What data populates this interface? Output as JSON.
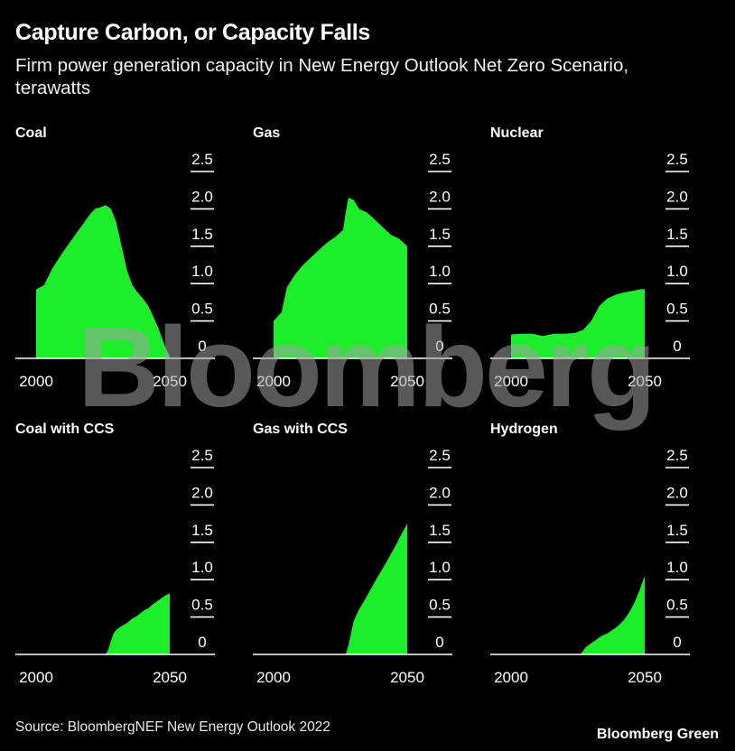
{
  "title": "Capture Carbon, or Capacity Falls",
  "subtitle": "Firm power generation capacity in New Energy Outlook Net Zero Scenario, terawatts",
  "source": "Source: BloombergNEF New Energy Outlook 2022",
  "brand": "Bloomberg Green",
  "watermark": "Bloomberg",
  "colors": {
    "fill": "#1dee2b",
    "background": "#000000",
    "axis": "#ffffff"
  },
  "chart_data": [
    {
      "type": "area",
      "title": "Coal",
      "xlim": [
        2000,
        2050
      ],
      "ylim": [
        0,
        2.5
      ],
      "x_ticks": [
        "2000",
        "2050"
      ],
      "y_ticks": [
        "2.5",
        "2.0",
        "1.5",
        "1.0",
        "0.5",
        "0"
      ],
      "x": [
        2000,
        2003,
        2006,
        2010,
        2014,
        2018,
        2020,
        2022,
        2024,
        2026,
        2028,
        2030,
        2032,
        2034,
        2036,
        2038,
        2040,
        2042,
        2044,
        2046,
        2048,
        2050
      ],
      "values": [
        0.92,
        0.98,
        1.2,
        1.42,
        1.62,
        1.82,
        1.92,
        2.0,
        2.02,
        2.05,
        2.0,
        1.82,
        1.5,
        1.18,
        0.98,
        0.88,
        0.8,
        0.7,
        0.55,
        0.38,
        0.18,
        0.02
      ]
    },
    {
      "type": "area",
      "title": "Gas",
      "xlim": [
        2000,
        2050
      ],
      "ylim": [
        0,
        2.5
      ],
      "x_ticks": [
        "2000",
        "2050"
      ],
      "y_ticks": [
        "2.5",
        "2.0",
        "1.5",
        "1.0",
        "0.5",
        "0"
      ],
      "x": [
        2000,
        2003,
        2005,
        2008,
        2011,
        2014,
        2017,
        2020,
        2023,
        2026,
        2027,
        2028,
        2030,
        2032,
        2035,
        2038,
        2041,
        2044,
        2047,
        2050
      ],
      "values": [
        0.5,
        0.62,
        0.95,
        1.12,
        1.25,
        1.35,
        1.45,
        1.55,
        1.62,
        1.72,
        1.95,
        2.15,
        2.12,
        2.0,
        1.95,
        1.85,
        1.75,
        1.65,
        1.6,
        1.5
      ]
    },
    {
      "type": "area",
      "title": "Nuclear",
      "xlim": [
        2000,
        2050
      ],
      "ylim": [
        0,
        2.5
      ],
      "x_ticks": [
        "2000",
        "2050"
      ],
      "y_ticks": [
        "2.5",
        "2.0",
        "1.5",
        "1.0",
        "0.5",
        "0"
      ],
      "x": [
        2000,
        2004,
        2008,
        2012,
        2016,
        2020,
        2024,
        2027,
        2030,
        2033,
        2036,
        2039,
        2042,
        2045,
        2048,
        2050
      ],
      "values": [
        0.32,
        0.33,
        0.33,
        0.3,
        0.33,
        0.33,
        0.34,
        0.38,
        0.5,
        0.7,
        0.8,
        0.85,
        0.88,
        0.9,
        0.92,
        0.93
      ]
    },
    {
      "type": "area",
      "title": "Coal with CCS",
      "xlim": [
        2000,
        2050
      ],
      "ylim": [
        0,
        2.5
      ],
      "x_ticks": [
        "2000",
        "2050"
      ],
      "y_ticks": [
        "2.5",
        "2.0",
        "1.5",
        "1.0",
        "0.5",
        "0"
      ],
      "x": [
        2000,
        2026,
        2027,
        2028,
        2029,
        2030,
        2032,
        2034,
        2036,
        2038,
        2040,
        2042,
        2044,
        2046,
        2048,
        2050
      ],
      "values": [
        0,
        0,
        0.06,
        0.18,
        0.28,
        0.33,
        0.38,
        0.42,
        0.48,
        0.52,
        0.58,
        0.62,
        0.68,
        0.73,
        0.78,
        0.82
      ]
    },
    {
      "type": "area",
      "title": "Gas with CCS",
      "xlim": [
        2000,
        2050
      ],
      "ylim": [
        0,
        2.5
      ],
      "x_ticks": [
        "2000",
        "2050"
      ],
      "y_ticks": [
        "2.5",
        "2.0",
        "1.5",
        "1.0",
        "0.5",
        "0"
      ],
      "x": [
        2000,
        2027,
        2028,
        2029,
        2030,
        2032,
        2034,
        2036,
        2038,
        2040,
        2042,
        2044,
        2046,
        2048,
        2050
      ],
      "values": [
        0,
        0,
        0.12,
        0.28,
        0.45,
        0.6,
        0.72,
        0.85,
        0.98,
        1.1,
        1.22,
        1.35,
        1.48,
        1.62,
        1.75
      ]
    },
    {
      "type": "area",
      "title": "Hydrogen",
      "xlim": [
        2000,
        2050
      ],
      "ylim": [
        0,
        2.5
      ],
      "x_ticks": [
        "2000",
        "2050"
      ],
      "y_ticks": [
        "2.5",
        "2.0",
        "1.5",
        "1.0",
        "0.5",
        "0"
      ],
      "x": [
        2000,
        2026,
        2027,
        2028,
        2030,
        2032,
        2034,
        2036,
        2038,
        2040,
        2042,
        2044,
        2046,
        2048,
        2050
      ],
      "values": [
        0,
        0,
        0.05,
        0.1,
        0.15,
        0.2,
        0.25,
        0.28,
        0.33,
        0.38,
        0.45,
        0.55,
        0.68,
        0.85,
        1.05
      ]
    }
  ]
}
